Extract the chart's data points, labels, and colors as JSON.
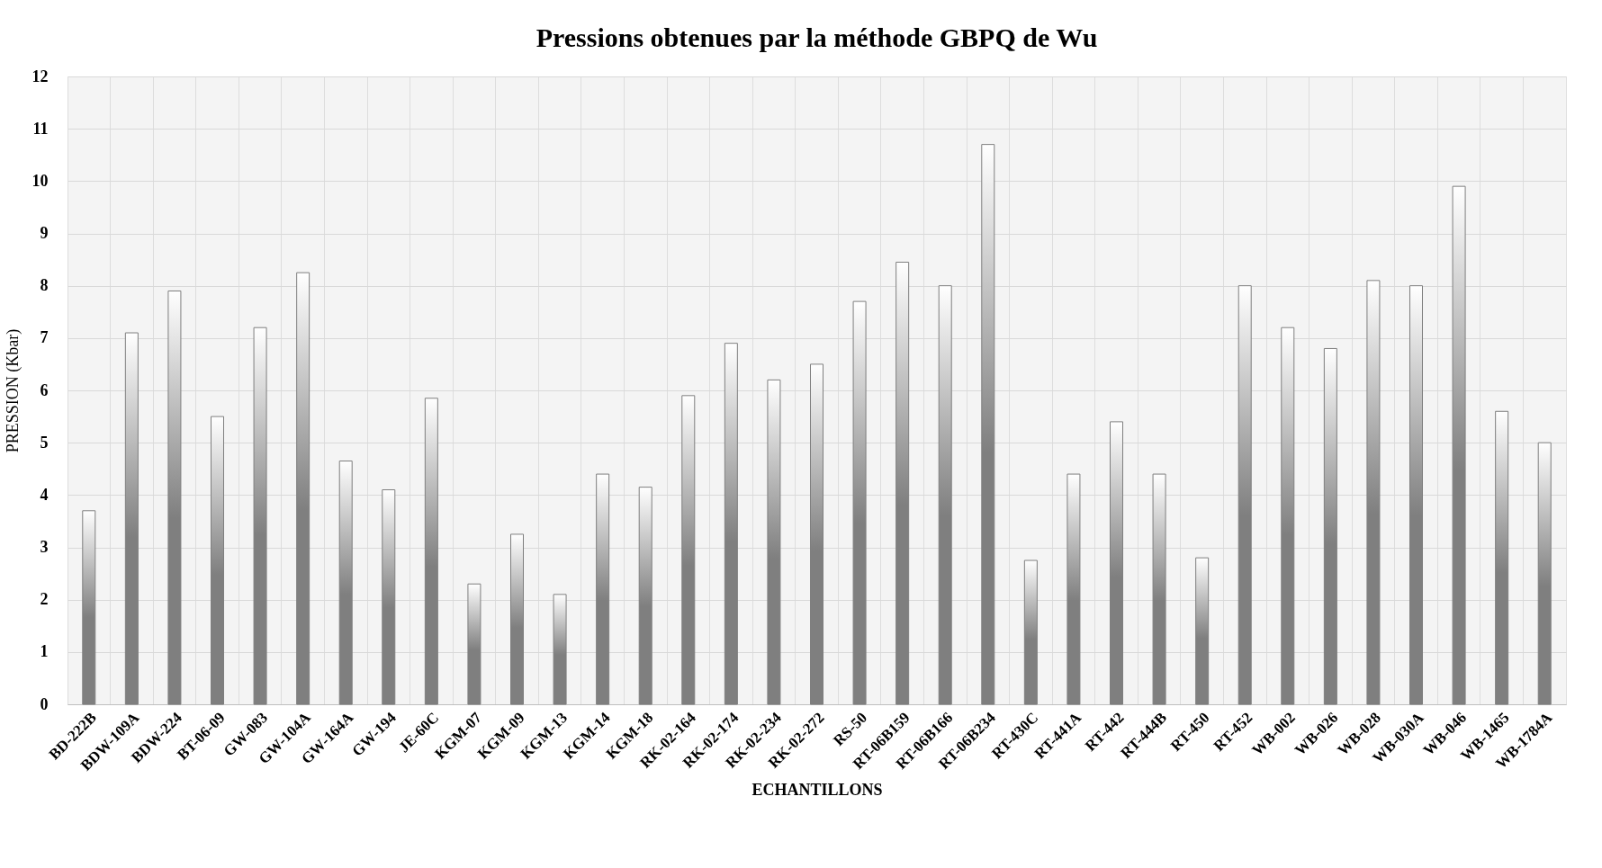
{
  "chart_data": {
    "type": "bar",
    "title": "Pressions obtenues par la méthode GBPQ de Wu",
    "xlabel": "ECHANTILLONS",
    "ylabel": "PRESSION (Kbar)",
    "categories": [
      "BD-222B",
      "BDW-109A",
      "BDW-224",
      "BT-06-09",
      "GW-083",
      "GW-104A",
      "GW-164A",
      "GW-194",
      "JE-60C",
      "KGM-07",
      "KGM-09",
      "KGM-13",
      "KGM-14",
      "KGM-18",
      "RK-02-164",
      "RK-02-174",
      "RK-02-234",
      "RK-02-272",
      "RS-50",
      "RT-06B159",
      "RT-06B166",
      "RT-06B234",
      "RT-430C",
      "RT-441A",
      "RT-442",
      "RT-444B",
      "RT-450",
      "RT-452",
      "WB-002",
      "WB-026",
      "WB-028",
      "WB-030A",
      "WB-046",
      "WB-1465",
      "WB-1784A"
    ],
    "values": [
      3.7,
      7.1,
      7.9,
      5.5,
      7.2,
      8.25,
      4.65,
      4.1,
      5.85,
      2.3,
      3.25,
      2.1,
      4.4,
      4.15,
      5.9,
      6.9,
      6.2,
      6.5,
      7.7,
      8.45,
      8.0,
      10.7,
      2.75,
      4.4,
      5.4,
      4.4,
      2.8,
      8.0,
      7.2,
      6.8,
      8.1,
      8.0,
      9.9,
      5.6,
      5.0
    ],
    "color": "#7f7f7f",
    "ylim": [
      0,
      12
    ],
    "yticks": [
      0,
      1,
      2,
      3,
      4,
      5,
      6,
      7,
      8,
      9,
      10,
      11,
      12
    ],
    "grid": true
  }
}
